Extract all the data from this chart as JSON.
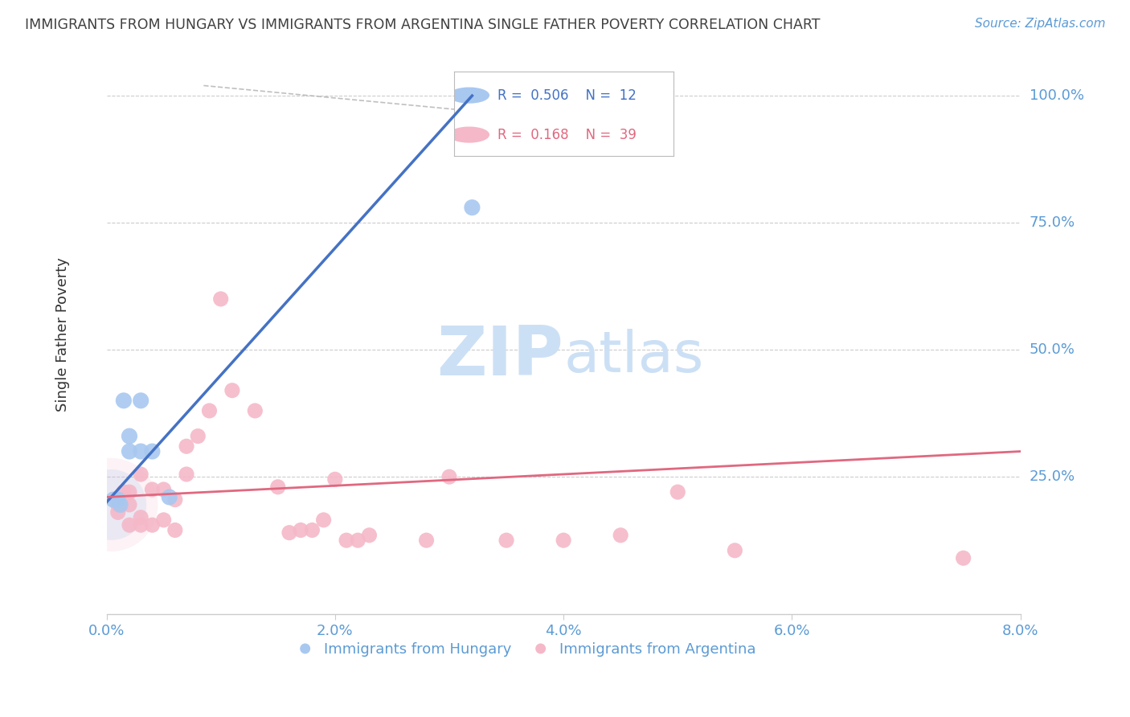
{
  "title": "IMMIGRANTS FROM HUNGARY VS IMMIGRANTS FROM ARGENTINA SINGLE FATHER POVERTY CORRELATION CHART",
  "source": "Source: ZipAtlas.com",
  "ylabel": "Single Father Poverty",
  "right_ytick_labels": [
    "100.0%",
    "75.0%",
    "50.0%",
    "25.0%"
  ],
  "right_ytick_values": [
    1.0,
    0.75,
    0.5,
    0.25
  ],
  "xlim": [
    0.0,
    0.08
  ],
  "ylim": [
    -0.02,
    1.08
  ],
  "x_tick_labels": [
    "0.0%",
    "2.0%",
    "4.0%",
    "6.0%",
    "8.0%"
  ],
  "x_tick_values": [
    0.0,
    0.02,
    0.04,
    0.06,
    0.08
  ],
  "color_hungary": "#a8c8f0",
  "color_argentina": "#f5b8c8",
  "color_trendline_hungary": "#4472c4",
  "color_trendline_argentina": "#e06880",
  "color_axis_labels": "#5b9bd5",
  "color_grid": "#cccccc",
  "color_title": "#404040",
  "hungary_x": [
    0.0006,
    0.001,
    0.0012,
    0.0015,
    0.002,
    0.002,
    0.003,
    0.003,
    0.004,
    0.0055,
    0.032,
    0.032
  ],
  "hungary_y": [
    0.205,
    0.205,
    0.195,
    0.4,
    0.33,
    0.3,
    0.3,
    0.4,
    0.3,
    0.21,
    0.97,
    0.78
  ],
  "argentina_x": [
    0.001,
    0.001,
    0.0015,
    0.002,
    0.002,
    0.002,
    0.003,
    0.003,
    0.003,
    0.004,
    0.004,
    0.005,
    0.005,
    0.006,
    0.006,
    0.007,
    0.007,
    0.008,
    0.009,
    0.01,
    0.011,
    0.013,
    0.015,
    0.016,
    0.017,
    0.018,
    0.019,
    0.02,
    0.021,
    0.022,
    0.023,
    0.028,
    0.03,
    0.035,
    0.04,
    0.045,
    0.05,
    0.055,
    0.075
  ],
  "argentina_y": [
    0.195,
    0.18,
    0.22,
    0.195,
    0.155,
    0.22,
    0.155,
    0.17,
    0.255,
    0.155,
    0.225,
    0.165,
    0.225,
    0.145,
    0.205,
    0.255,
    0.31,
    0.33,
    0.38,
    0.6,
    0.42,
    0.38,
    0.23,
    0.14,
    0.145,
    0.145,
    0.165,
    0.245,
    0.125,
    0.125,
    0.135,
    0.125,
    0.25,
    0.125,
    0.125,
    0.135,
    0.22,
    0.105,
    0.09
  ],
  "trend_hungary_x0": 0.0,
  "trend_hungary_y0": 0.2,
  "trend_hungary_x1": 0.032,
  "trend_hungary_y1": 1.0,
  "trend_argentina_x0": 0.0,
  "trend_argentina_y0": 0.21,
  "trend_argentina_x1": 0.08,
  "trend_argentina_y1": 0.3,
  "dash_line_x0": 0.032,
  "dash_line_y0": 1.0,
  "dash_line_x1": 0.032,
  "dash_line_y1": 0.97,
  "watermark_zip": "ZIP",
  "watermark_atlas": "atlas",
  "watermark_color": "#cce0f5",
  "background_color": "#ffffff"
}
